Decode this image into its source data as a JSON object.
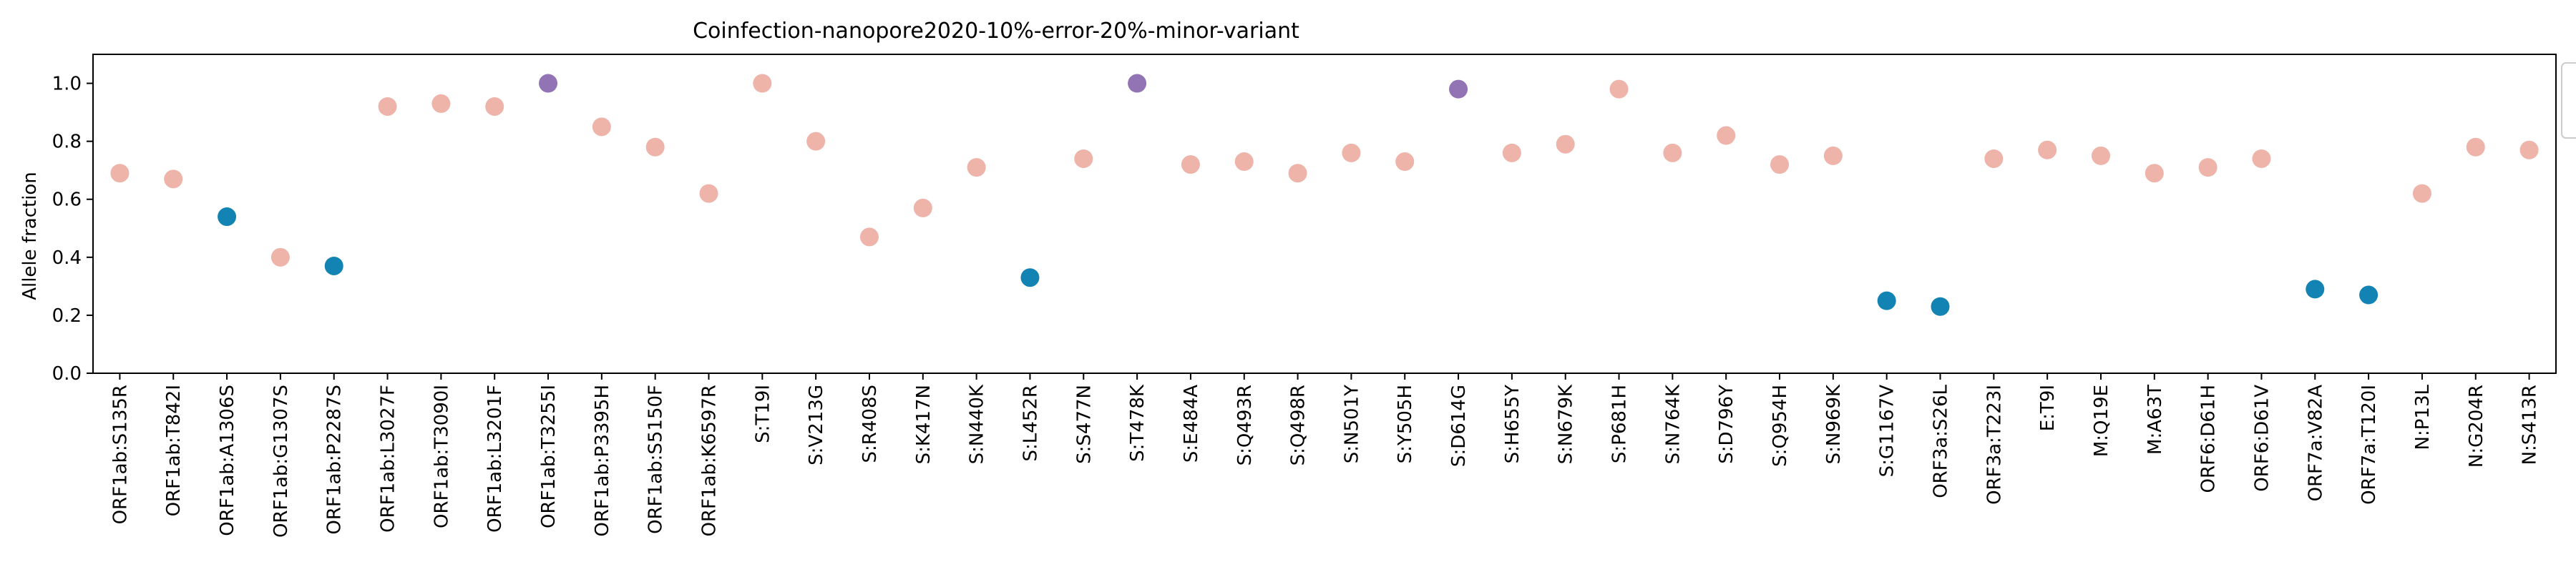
{
  "chart_data": {
    "type": "scatter",
    "title": "Coinfection-nanopore2020-10%-error-20%-minor-variant",
    "xlabel": "",
    "ylabel": "Allele fraction",
    "ylim": [
      0.0,
      1.1
    ],
    "yticks": [
      "0.0",
      "0.2",
      "0.4",
      "0.6",
      "0.8",
      "1.0"
    ],
    "grid": false,
    "legend": "right, clipped",
    "colors": {
      "pink": "#eeb3a9",
      "blue": "#1283b3",
      "purple": "#9273b3"
    },
    "categories": [
      "ORF1ab:S135R",
      "ORF1ab:T842I",
      "ORF1ab:A1306S",
      "ORF1ab:G1307S",
      "ORF1ab:P2287S",
      "ORF1ab:L3027F",
      "ORF1ab:T3090I",
      "ORF1ab:L3201F",
      "ORF1ab:T3255I",
      "ORF1ab:P3395H",
      "ORF1ab:S5150F",
      "ORF1ab:K6597R",
      "S:T19I",
      "S:V213G",
      "S:R408S",
      "S:K417N",
      "S:N440K",
      "S:L452R",
      "S:S477N",
      "S:T478K",
      "S:E484A",
      "S:Q493R",
      "S:Q498R",
      "S:N501Y",
      "S:Y505H",
      "S:D614G",
      "S:H655Y",
      "S:N679K",
      "S:P681H",
      "S:N764K",
      "S:D796Y",
      "S:Q954H",
      "S:N969K",
      "S:G1167V",
      "ORF3a:S26L",
      "ORF3a:T223I",
      "E:T9I",
      "M:Q19E",
      "M:A63T",
      "ORF6:D61H",
      "ORF6:D61V",
      "ORF7a:V82A",
      "ORF7a:T120I",
      "N:P13L",
      "N:G204R",
      "N:S413R"
    ],
    "values": [
      0.69,
      0.67,
      0.54,
      0.4,
      0.37,
      0.92,
      0.93,
      0.92,
      1.0,
      0.85,
      0.78,
      0.62,
      1.0,
      0.8,
      0.47,
      0.57,
      0.71,
      0.33,
      0.74,
      1.0,
      0.72,
      0.73,
      0.69,
      0.76,
      0.73,
      0.98,
      0.76,
      0.79,
      0.98,
      0.76,
      0.82,
      0.72,
      0.75,
      0.25,
      0.23,
      0.74,
      0.77,
      0.75,
      0.69,
      0.71,
      0.74,
      0.29,
      0.27,
      0.62,
      0.78,
      0.77
    ],
    "point_colors": [
      "pink",
      "pink",
      "blue",
      "pink",
      "blue",
      "pink",
      "pink",
      "pink",
      "purple",
      "pink",
      "pink",
      "pink",
      "pink",
      "pink",
      "pink",
      "pink",
      "pink",
      "blue",
      "pink",
      "purple",
      "pink",
      "pink",
      "pink",
      "pink",
      "pink",
      "purple",
      "pink",
      "pink",
      "pink",
      "pink",
      "pink",
      "pink",
      "pink",
      "blue",
      "blue",
      "pink",
      "pink",
      "pink",
      "pink",
      "pink",
      "pink",
      "blue",
      "blue",
      "pink",
      "pink",
      "pink"
    ]
  }
}
